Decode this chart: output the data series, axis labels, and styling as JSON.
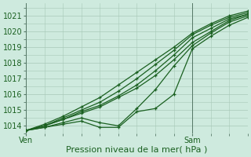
{
  "bg_color": "#ceeade",
  "grid_color": "#a8c8b8",
  "line_color": "#1a6020",
  "xlabel": "Pression niveau de la mer( hPa )",
  "xlabel_fontsize": 8,
  "tick_fontsize": 7,
  "ylim": [
    1013.5,
    1021.8
  ],
  "yticks": [
    1014,
    1015,
    1016,
    1017,
    1018,
    1019,
    1020,
    1021
  ],
  "xlim": [
    0,
    48
  ],
  "x_ven": 0,
  "x_sam": 36,
  "x_end": 48,
  "series": [
    {
      "x": [
        0,
        4,
        8,
        12,
        16,
        20,
        24,
        28,
        32,
        36,
        40,
        44,
        48
      ],
      "y": [
        1013.7,
        1014.1,
        1014.6,
        1015.2,
        1015.8,
        1016.6,
        1017.4,
        1018.2,
        1019.0,
        1019.9,
        1020.5,
        1021.0,
        1021.3
      ]
    },
    {
      "x": [
        0,
        4,
        8,
        12,
        16,
        20,
        24,
        28,
        32,
        36,
        40,
        44,
        48
      ],
      "y": [
        1013.7,
        1014.0,
        1014.5,
        1015.0,
        1015.5,
        1016.2,
        1017.0,
        1017.9,
        1018.8,
        1019.8,
        1020.4,
        1020.9,
        1021.2
      ]
    },
    {
      "x": [
        0,
        4,
        8,
        12,
        16,
        20,
        24,
        28,
        32,
        36,
        40,
        44,
        48
      ],
      "y": [
        1013.7,
        1014.0,
        1014.4,
        1014.9,
        1015.3,
        1015.9,
        1016.6,
        1017.5,
        1018.5,
        1019.6,
        1020.2,
        1020.8,
        1021.1
      ]
    },
    {
      "x": [
        0,
        4,
        8,
        12,
        16,
        20,
        24,
        28,
        32,
        36,
        40,
        44,
        48
      ],
      "y": [
        1013.7,
        1014.0,
        1014.4,
        1014.8,
        1015.2,
        1015.8,
        1016.4,
        1017.2,
        1018.2,
        1019.3,
        1020.0,
        1020.7,
        1021.1
      ]
    },
    {
      "x": [
        0,
        4,
        8,
        12,
        16,
        20,
        24,
        28,
        32,
        36,
        40,
        44,
        48
      ],
      "y": [
        1013.7,
        1013.9,
        1014.2,
        1014.5,
        1014.2,
        1014.0,
        1015.1,
        1016.3,
        1017.8,
        1019.1,
        1019.9,
        1020.6,
        1021.0
      ]
    },
    {
      "x": [
        0,
        4,
        8,
        12,
        16,
        20,
        24,
        28,
        32,
        36,
        40,
        44,
        48
      ],
      "y": [
        1013.7,
        1013.9,
        1014.1,
        1014.3,
        1013.9,
        1013.9,
        1014.9,
        1015.1,
        1016.0,
        1018.9,
        1019.7,
        1020.4,
        1020.9
      ]
    }
  ]
}
